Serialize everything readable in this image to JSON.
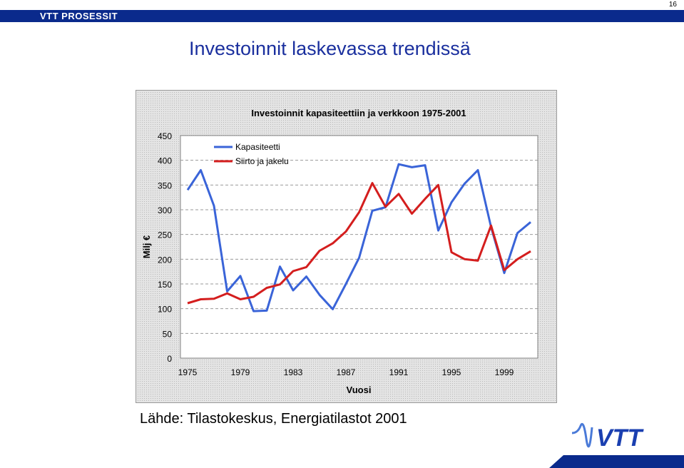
{
  "header": {
    "brand": "VTT PROSESSIT",
    "page_number": "16"
  },
  "slide": {
    "title": "Investoinnit laskevassa trendissä",
    "source": "Lähde: Tilastokeskus, Energiatilastot 2001"
  },
  "colors": {
    "header_bg": "#0a2a8c",
    "title": "#1a2f9e",
    "series1": "#3a64d8",
    "series2": "#d41e1e"
  },
  "logo": {
    "text": "VTT"
  },
  "chart_data": {
    "type": "line",
    "title": "Investoinnit kapasiteettiin ja verkkoon 1975-2001",
    "xlabel": "Vuosi",
    "ylabel": "Milj €",
    "ylim": [
      0,
      450
    ],
    "yticks": [
      0,
      50,
      100,
      150,
      200,
      250,
      300,
      350,
      400,
      450
    ],
    "xticks": [
      1975,
      1979,
      1983,
      1987,
      1991,
      1995,
      1999
    ],
    "grid": "horizontal dashed",
    "legend": "top-left",
    "x": [
      1975,
      1976,
      1977,
      1978,
      1979,
      1980,
      1981,
      1982,
      1983,
      1984,
      1985,
      1986,
      1987,
      1988,
      1989,
      1990,
      1991,
      1992,
      1993,
      1994,
      1995,
      1996,
      1997,
      1998,
      1999,
      2000,
      2001
    ],
    "series": [
      {
        "name": "Kapasiteetti",
        "color": "#3a64d8",
        "values": [
          340,
          380,
          308,
          135,
          166,
          95,
          96,
          185,
          137,
          165,
          128,
          99,
          150,
          203,
          298,
          305,
          392,
          386,
          390,
          258,
          315,
          353,
          380,
          265,
          172,
          253,
          275
        ]
      },
      {
        "name": "Siirto ja jakelu",
        "color": "#d41e1e",
        "values": [
          111,
          119,
          120,
          131,
          119,
          124,
          142,
          149,
          176,
          184,
          217,
          232,
          256,
          295,
          354,
          306,
          332,
          292,
          322,
          350,
          214,
          200,
          197,
          268,
          178,
          200,
          216
        ]
      }
    ]
  }
}
